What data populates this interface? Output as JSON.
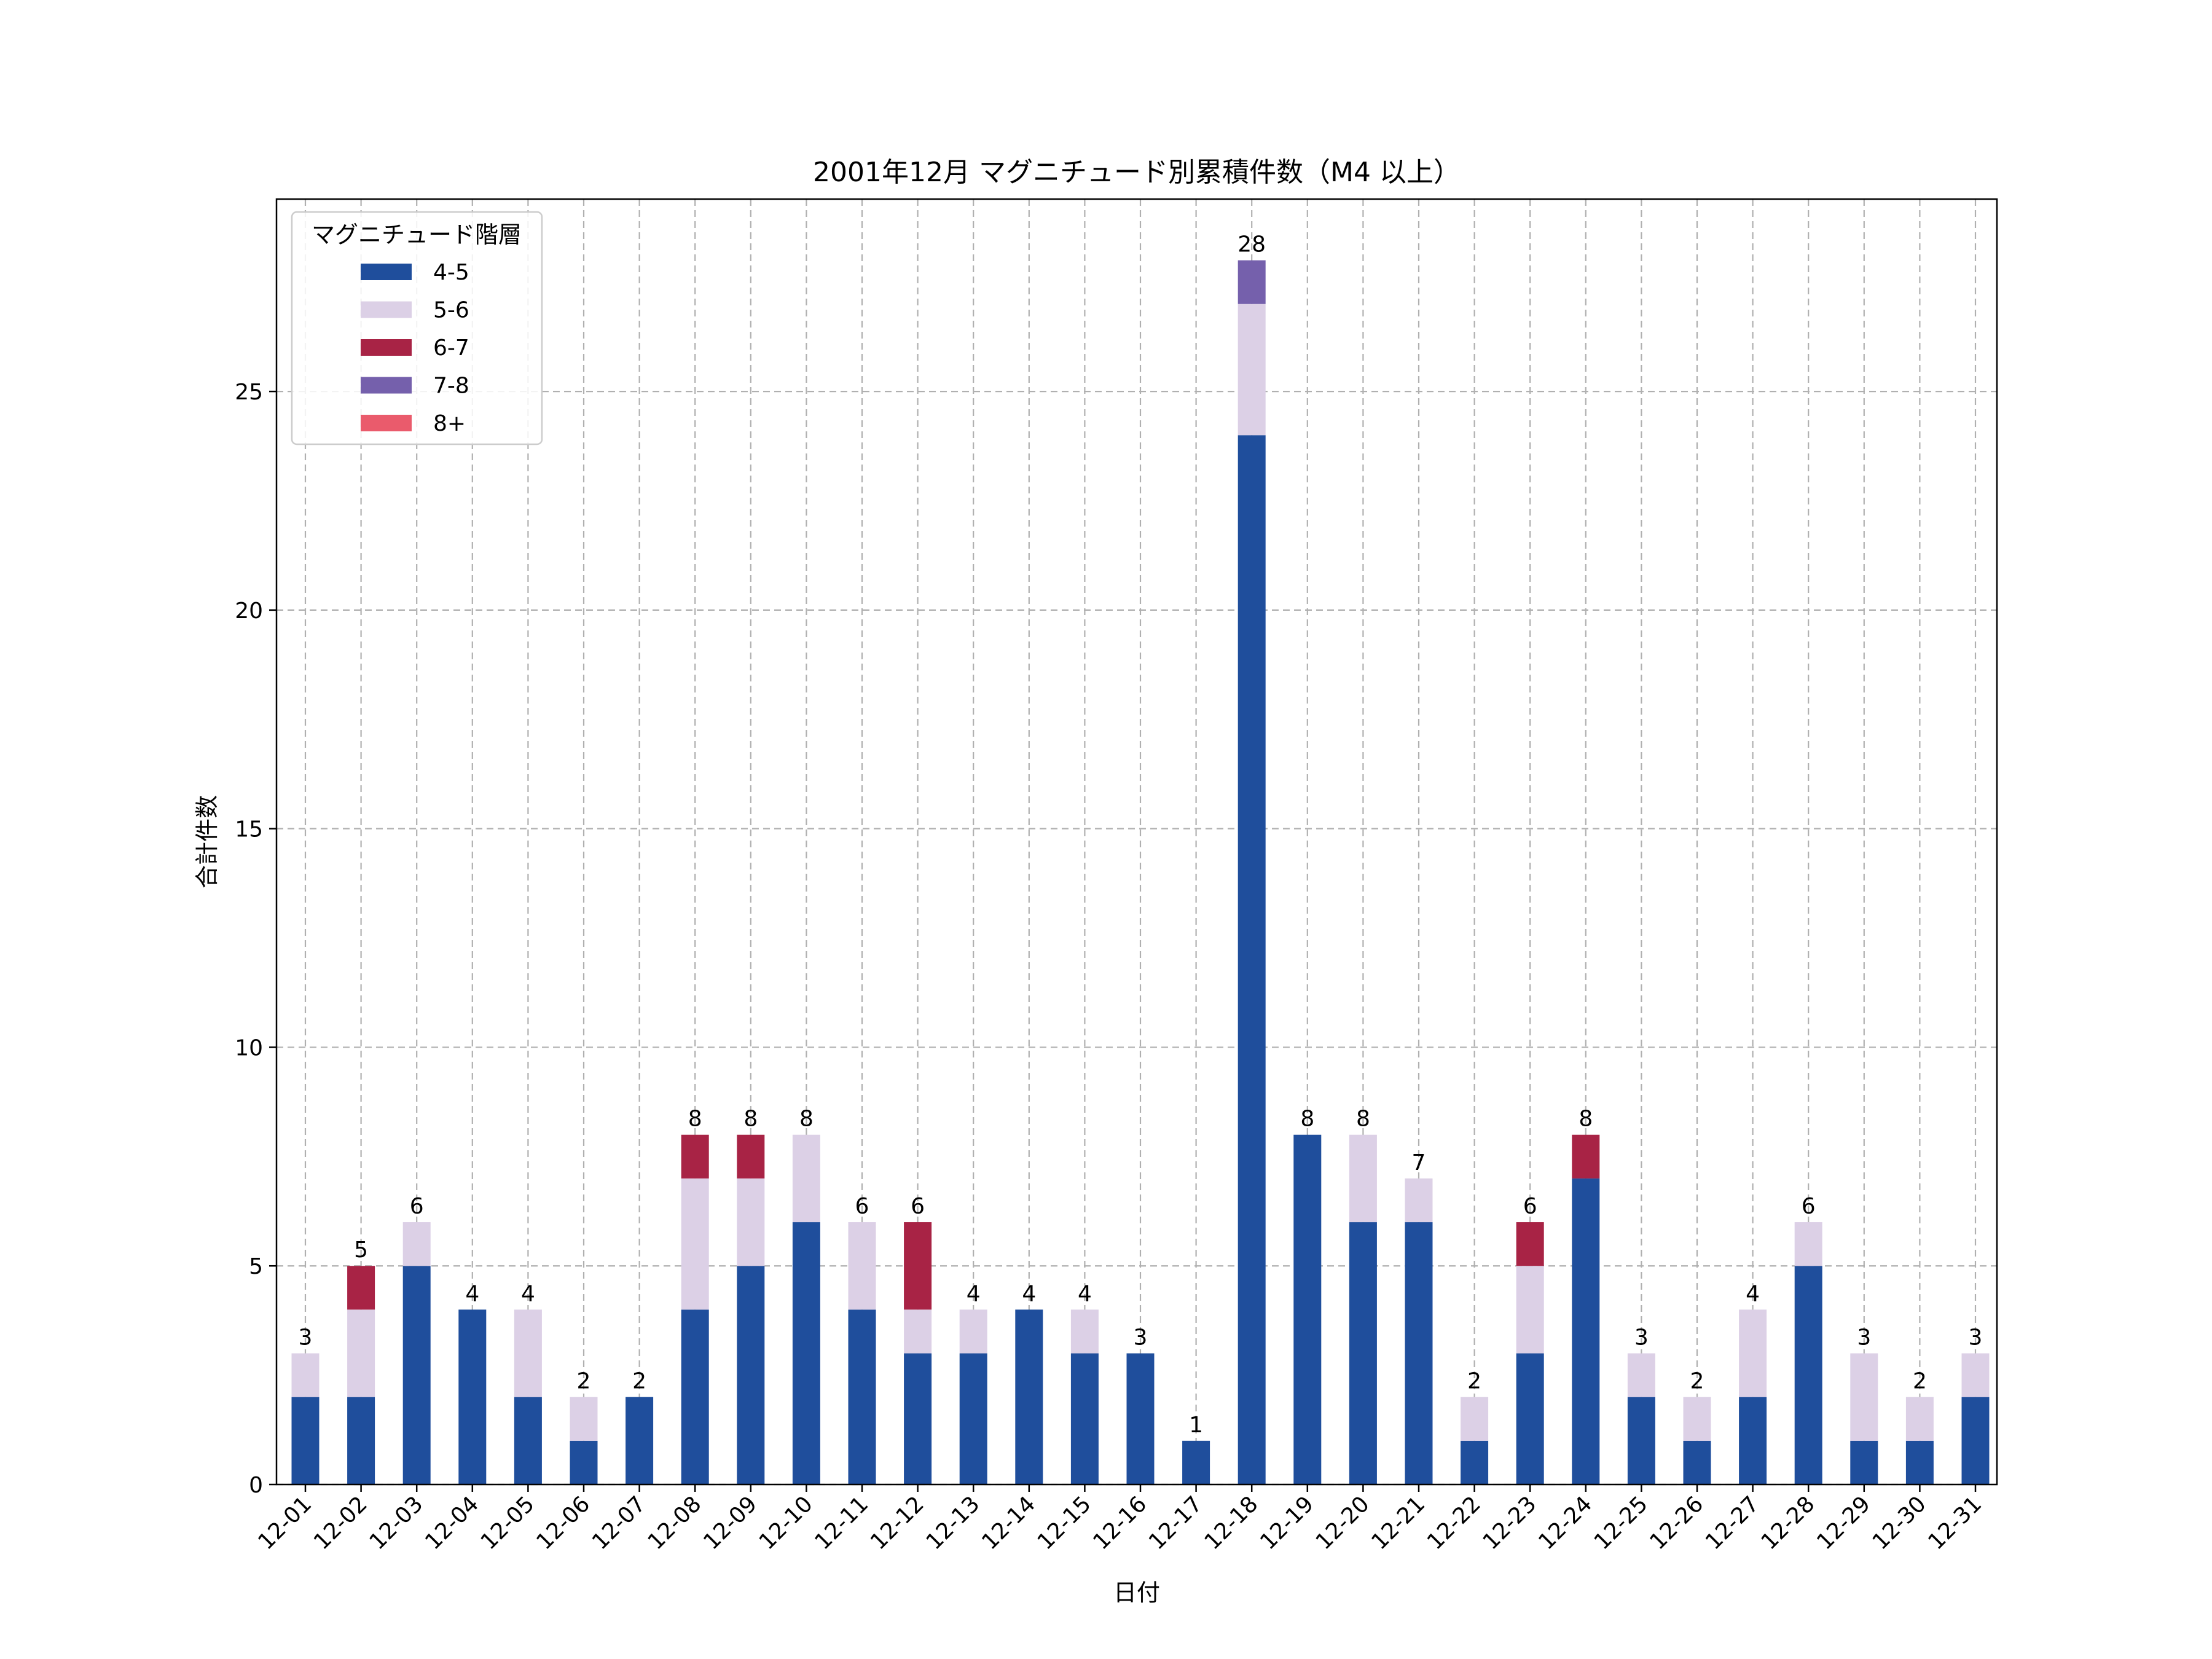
{
  "chart_data": {
    "type": "bar",
    "stacked": true,
    "title": "2001年12月 マグニチュード別累積件数（M4 以上）",
    "xlabel": "日付",
    "ylabel": "合計件数",
    "ylim": [
      0,
      29.4
    ],
    "yticks": [
      0,
      5,
      10,
      15,
      20,
      25
    ],
    "grid": true,
    "legend": {
      "title": "マグニチュード階層",
      "placement": "top-left"
    },
    "categories": [
      "12-01",
      "12-02",
      "12-03",
      "12-04",
      "12-05",
      "12-06",
      "12-07",
      "12-08",
      "12-09",
      "12-10",
      "12-11",
      "12-12",
      "12-13",
      "12-14",
      "12-15",
      "12-16",
      "12-17",
      "12-18",
      "12-19",
      "12-20",
      "12-21",
      "12-22",
      "12-23",
      "12-24",
      "12-25",
      "12-26",
      "12-27",
      "12-28",
      "12-29",
      "12-30",
      "12-31"
    ],
    "series": [
      {
        "name": "4-5",
        "color": "#1f4e9c",
        "values": [
          2,
          2,
          5,
          4,
          2,
          1,
          2,
          4,
          5,
          6,
          4,
          3,
          3,
          4,
          3,
          3,
          1,
          24,
          8,
          6,
          6,
          1,
          3,
          7,
          2,
          1,
          2,
          5,
          1,
          1,
          2
        ]
      },
      {
        "name": "5-6",
        "color": "#dcd0e6",
        "values": [
          1,
          2,
          1,
          0,
          2,
          1,
          0,
          3,
          2,
          2,
          2,
          1,
          1,
          0,
          1,
          0,
          0,
          3,
          0,
          2,
          1,
          1,
          2,
          0,
          1,
          1,
          2,
          1,
          2,
          1,
          1
        ]
      },
      {
        "name": "6-7",
        "color": "#a82345",
        "values": [
          0,
          1,
          0,
          0,
          0,
          0,
          0,
          1,
          1,
          0,
          0,
          2,
          0,
          0,
          0,
          0,
          0,
          0,
          0,
          0,
          0,
          0,
          1,
          1,
          0,
          0,
          0,
          0,
          0,
          0,
          0
        ]
      },
      {
        "name": "7-8",
        "color": "#7560ac",
        "values": [
          0,
          0,
          0,
          0,
          0,
          0,
          0,
          0,
          0,
          0,
          0,
          0,
          0,
          0,
          0,
          0,
          0,
          1,
          0,
          0,
          0,
          0,
          0,
          0,
          0,
          0,
          0,
          0,
          0,
          0,
          0
        ]
      },
      {
        "name": "8+",
        "color": "#ea5b6c",
        "values": [
          0,
          0,
          0,
          0,
          0,
          0,
          0,
          0,
          0,
          0,
          0,
          0,
          0,
          0,
          0,
          0,
          0,
          0,
          0,
          0,
          0,
          0,
          0,
          0,
          0,
          0,
          0,
          0,
          0,
          0,
          0
        ]
      }
    ],
    "totals": [
      3,
      5,
      6,
      4,
      4,
      2,
      2,
      8,
      8,
      8,
      6,
      6,
      4,
      4,
      4,
      3,
      1,
      28,
      8,
      8,
      7,
      2,
      6,
      8,
      3,
      2,
      4,
      6,
      3,
      2,
      3
    ]
  }
}
